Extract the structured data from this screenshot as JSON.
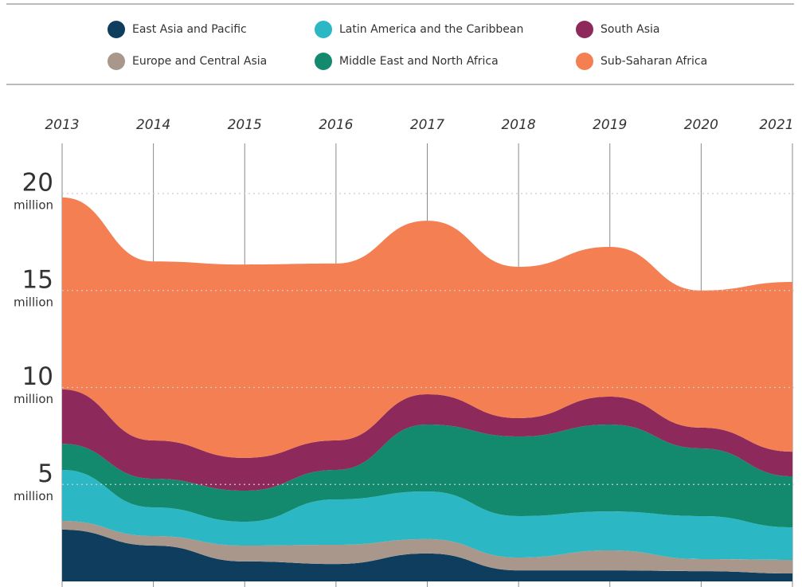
{
  "chart_data": {
    "type": "stacked_area",
    "categories": [
      "2013",
      "2014",
      "2015",
      "2016",
      "2017",
      "2018",
      "2019",
      "2020",
      "2021"
    ],
    "y_unit": "million",
    "ylim": [
      0,
      20
    ],
    "yticks": [
      5,
      10,
      15,
      20
    ],
    "grid": true,
    "series": [
      {
        "name": "East Asia and Pacific",
        "color": "#0f3d5e",
        "values": [
          2.67,
          1.85,
          1.03,
          0.9,
          1.44,
          0.57,
          0.57,
          0.53,
          0.41
        ]
      },
      {
        "name": "Europe and Central Asia",
        "color": "#a8978a",
        "values": [
          0.45,
          0.49,
          0.82,
          0.99,
          0.74,
          0.66,
          1.03,
          0.62,
          0.7
        ]
      },
      {
        "name": "Latin America and the Caribbean",
        "color": "#2bb8c4",
        "values": [
          2.63,
          1.48,
          1.23,
          2.34,
          2.46,
          2.14,
          2.01,
          2.22,
          1.68
        ]
      },
      {
        "name": "Middle East and North Africa",
        "color": "#138a6d",
        "values": [
          1.35,
          1.48,
          1.6,
          1.52,
          3.45,
          4.1,
          4.48,
          3.49,
          2.63
        ]
      },
      {
        "name": "South Asia",
        "color": "#8e2a5b",
        "values": [
          2.8,
          1.97,
          1.69,
          1.52,
          1.56,
          0.95,
          1.44,
          1.07,
          1.27
        ]
      },
      {
        "name": "Sub-Saharan Africa",
        "color": "#f47f52",
        "values": [
          9.9,
          9.23,
          9.97,
          9.12,
          8.95,
          7.8,
          7.72,
          7.07,
          8.75
        ]
      }
    ]
  }
}
